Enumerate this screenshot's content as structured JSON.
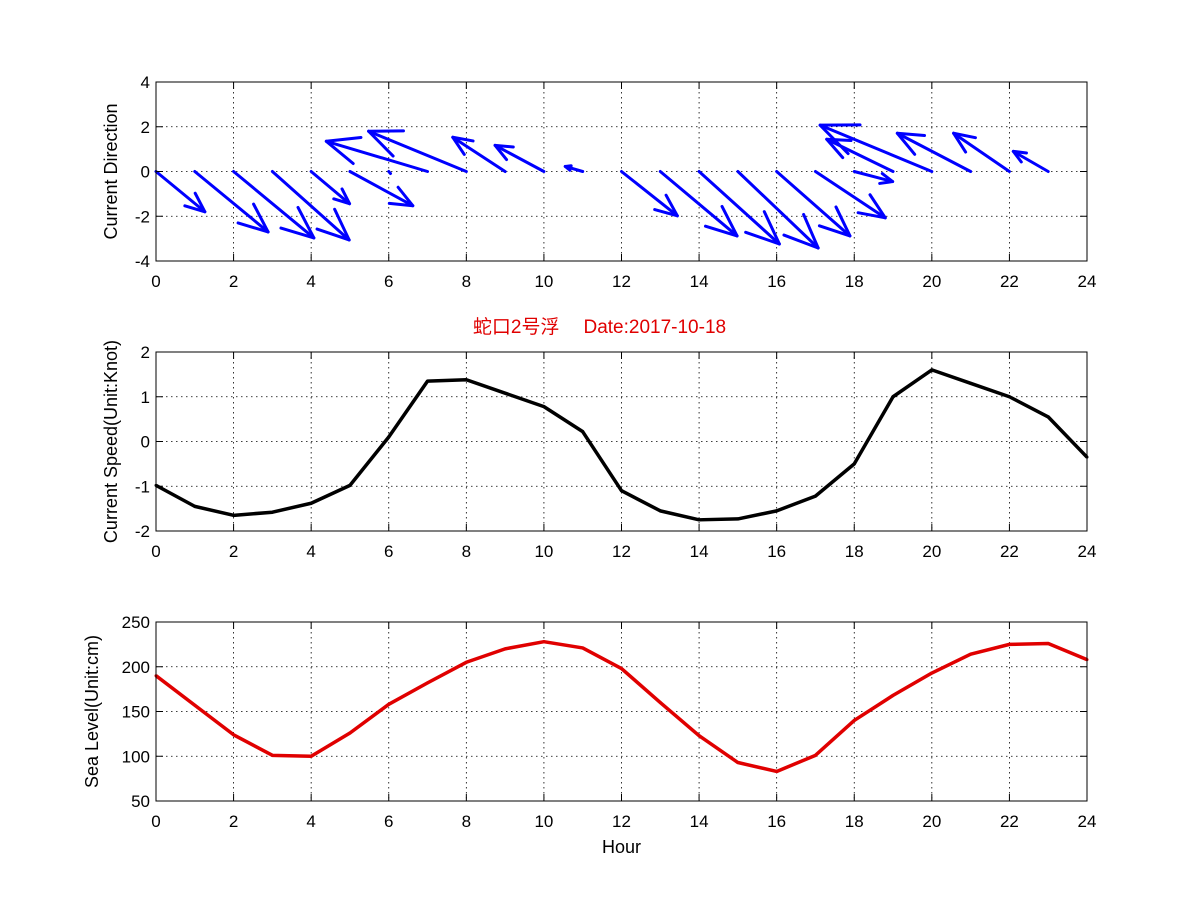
{
  "title": {
    "station": "蛇口2号浮",
    "date": "Date:2017-10-18",
    "color": "#e00000"
  },
  "chart_data": [
    {
      "type": "quiver",
      "id": "direction",
      "ylabel": "Current Direction",
      "xlim": [
        0,
        24
      ],
      "ylim": [
        -4,
        4
      ],
      "xticks": [
        0,
        2,
        4,
        6,
        8,
        10,
        12,
        14,
        16,
        18,
        20,
        22,
        24
      ],
      "yticks": [
        -4,
        -2,
        0,
        2,
        4
      ],
      "grid": true,
      "color": "#0000ff",
      "vectors": [
        {
          "x": 0,
          "u": 1.4,
          "v": -2.0
        },
        {
          "x": 1,
          "u": 2.1,
          "v": -3.0
        },
        {
          "x": 2,
          "u": 2.3,
          "v": -3.3
        },
        {
          "x": 3,
          "u": 2.2,
          "v": -3.4
        },
        {
          "x": 4,
          "u": 1.1,
          "v": -1.6
        },
        {
          "x": 5,
          "u": 1.8,
          "v": -1.7
        },
        {
          "x": 6,
          "u": 0.05,
          "v": -0.1
        },
        {
          "x": 7,
          "u": -2.9,
          "v": 1.5
        },
        {
          "x": 8,
          "u": -2.8,
          "v": 2.0
        },
        {
          "x": 9,
          "u": -1.5,
          "v": 1.7
        },
        {
          "x": 10,
          "u": -1.4,
          "v": 1.3
        },
        {
          "x": 11,
          "u": -0.5,
          "v": 0.25
        },
        {
          "x": 12,
          "u": 1.6,
          "v": -2.2
        },
        {
          "x": 13,
          "u": 2.2,
          "v": -3.2
        },
        {
          "x": 14,
          "u": 2.3,
          "v": -3.6
        },
        {
          "x": 15,
          "u": 2.3,
          "v": -3.8
        },
        {
          "x": 16,
          "u": 2.1,
          "v": -3.2
        },
        {
          "x": 17,
          "u": 2.0,
          "v": -2.3
        },
        {
          "x": 18,
          "u": 1.1,
          "v": -0.5
        },
        {
          "x": 19,
          "u": -1.9,
          "v": 1.6
        },
        {
          "x": 20,
          "u": -3.2,
          "v": 2.3
        },
        {
          "x": 21,
          "u": -2.1,
          "v": 1.9
        },
        {
          "x": 22,
          "u": -1.6,
          "v": 1.9
        },
        {
          "x": 23,
          "u": -1.0,
          "v": 1.0
        }
      ]
    },
    {
      "type": "line",
      "id": "speed",
      "ylabel": "Current Speed(Unit:Knot)",
      "xlim": [
        0,
        24
      ],
      "ylim": [
        -2,
        2
      ],
      "xticks": [
        0,
        2,
        4,
        6,
        8,
        10,
        12,
        14,
        16,
        18,
        20,
        22,
        24
      ],
      "yticks": [
        -2,
        -1,
        0,
        1,
        2
      ],
      "grid": true,
      "color": "#000000",
      "x": [
        0,
        1,
        2,
        3,
        4,
        5,
        6,
        7,
        8,
        9,
        10,
        11,
        12,
        13,
        14,
        15,
        16,
        17,
        18,
        19,
        20,
        21,
        22,
        23,
        24
      ],
      "y": [
        -0.98,
        -1.45,
        -1.65,
        -1.58,
        -1.38,
        -0.98,
        0.1,
        1.35,
        1.38,
        1.08,
        0.78,
        0.22,
        -1.1,
        -1.55,
        -1.75,
        -1.73,
        -1.55,
        -1.22,
        -0.5,
        1.0,
        1.6,
        1.3,
        1.0,
        0.55,
        -0.35
      ]
    },
    {
      "type": "line",
      "id": "sealevel",
      "ylabel": "Sea Level(Unit:cm)",
      "xlabel": "Hour",
      "xlim": [
        0,
        24
      ],
      "ylim": [
        50,
        250
      ],
      "xticks": [
        0,
        2,
        4,
        6,
        8,
        10,
        12,
        14,
        16,
        18,
        20,
        22,
        24
      ],
      "yticks": [
        50,
        100,
        150,
        200,
        250
      ],
      "grid": true,
      "color": "#e00000",
      "x": [
        0,
        1,
        2,
        3,
        4,
        5,
        6,
        7,
        8,
        9,
        10,
        11,
        12,
        13,
        14,
        15,
        16,
        17,
        18,
        19,
        20,
        21,
        22,
        23,
        24
      ],
      "y": [
        190,
        157,
        124,
        101,
        100,
        126,
        158,
        182,
        205,
        220,
        228,
        221,
        198,
        160,
        123,
        93,
        83,
        101,
        140,
        168,
        193,
        214,
        225,
        226,
        208
      ]
    }
  ]
}
